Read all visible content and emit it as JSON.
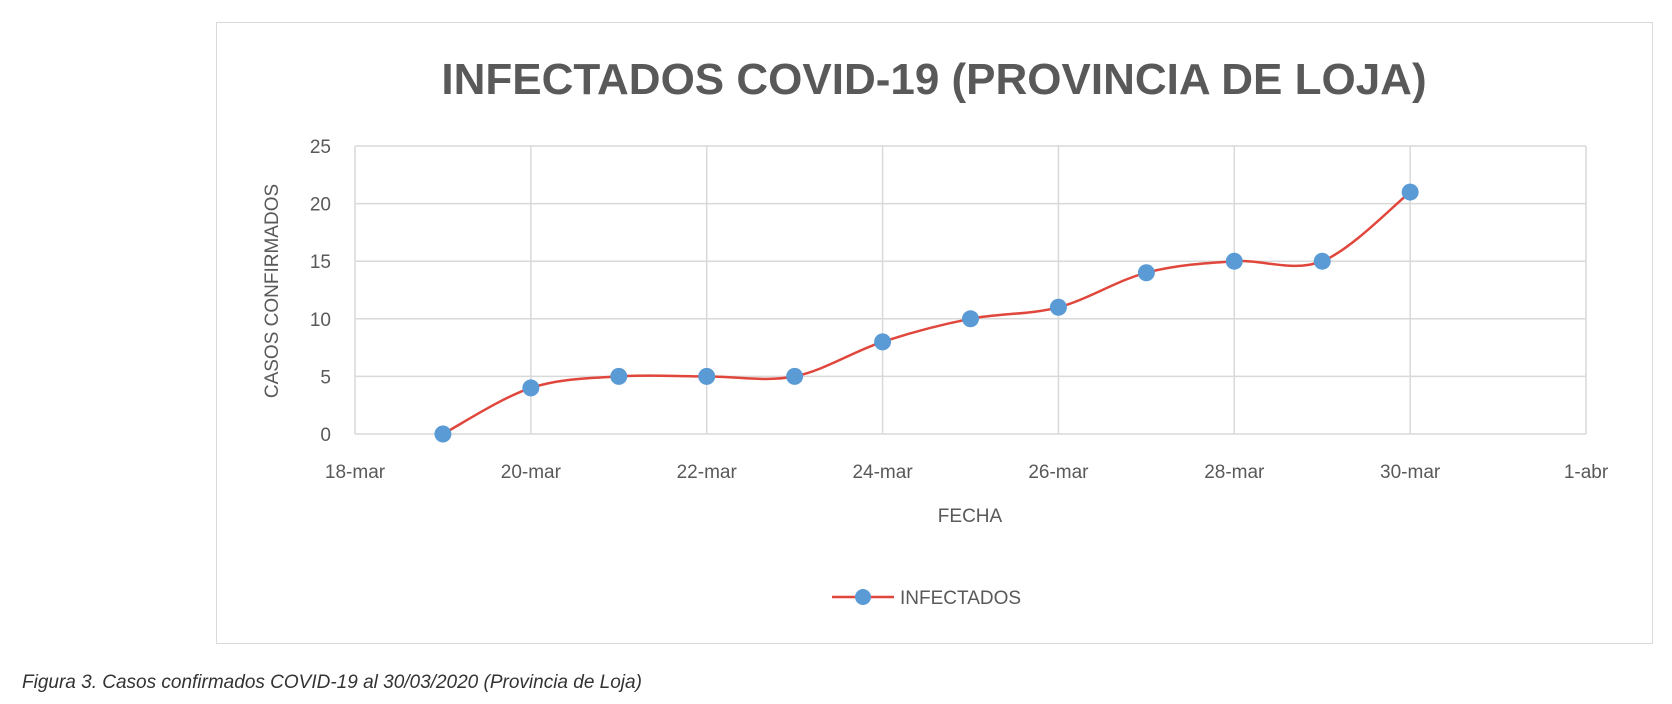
{
  "chart_data": {
    "type": "line",
    "title": "INFECTADOS COVID-19 (PROVINCIA DE LOJA)",
    "xlabel": "FECHA",
    "ylabel": "CASOS CONFIRMADOS",
    "x_tick_labels": [
      "18-mar",
      "20-mar",
      "22-mar",
      "24-mar",
      "26-mar",
      "28-mar",
      "30-mar",
      "1-abr"
    ],
    "y_tick_labels": [
      "0",
      "5",
      "10",
      "15",
      "20",
      "25"
    ],
    "xlim": [
      "2020-03-18",
      "2020-04-01"
    ],
    "ylim": [
      0,
      25
    ],
    "grid": true,
    "smoothed": true,
    "legend_position": "bottom",
    "series": [
      {
        "name": "INFECTADOS",
        "line_color": "#e0463c",
        "marker_color": "#5b9bd5",
        "x": [
          "2020-03-19",
          "2020-03-20",
          "2020-03-21",
          "2020-03-22",
          "2020-03-23",
          "2020-03-24",
          "2020-03-25",
          "2020-03-26",
          "2020-03-27",
          "2020-03-28",
          "2020-03-29",
          "2020-03-30"
        ],
        "y": [
          0,
          4,
          5,
          5,
          5,
          8,
          10,
          11,
          14,
          15,
          15,
          21
        ]
      }
    ]
  },
  "caption": "Figura 3. Casos confirmados COVID-19 al 30/03/2020 (Provincia de Loja)"
}
